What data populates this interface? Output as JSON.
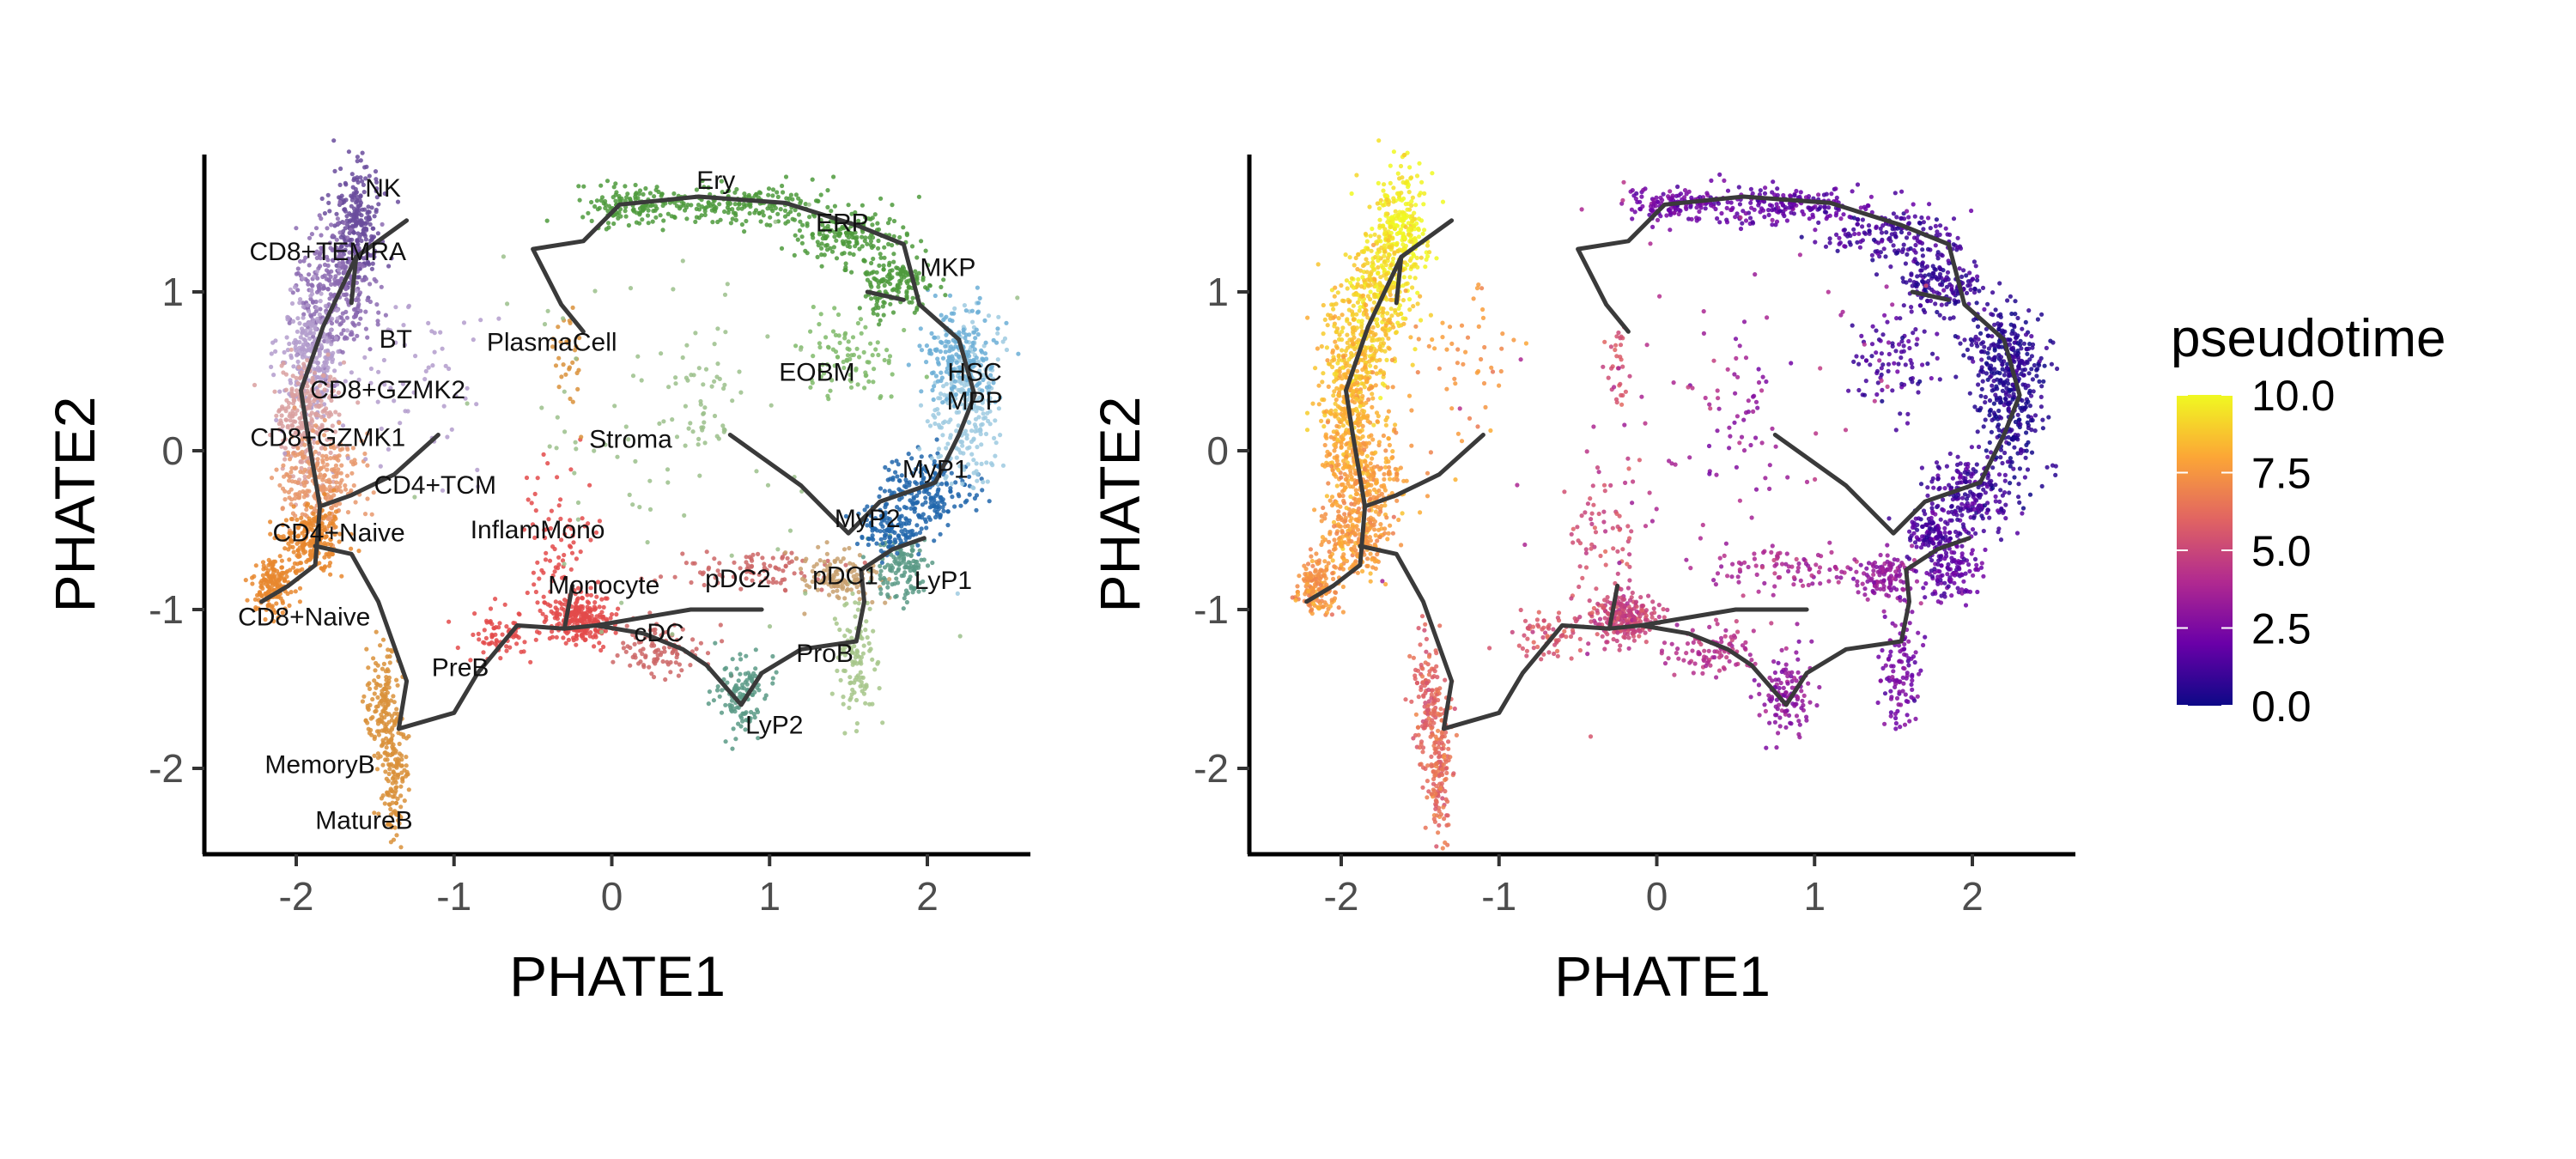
{
  "chart_data": [
    {
      "type": "scatter",
      "xlabel": "PHATE1",
      "ylabel": "PHATE2",
      "xlim": [
        -2.6,
        2.65
      ],
      "ylim": [
        -2.58,
        1.85
      ],
      "xticks": [
        -2,
        -1,
        0,
        1,
        2
      ],
      "yticks": [
        -2,
        -1,
        0,
        1
      ],
      "xtick_labels": [
        "-2",
        "-1",
        "0",
        "1",
        "2"
      ],
      "ytick_labels": [
        "-2",
        "-1",
        "0",
        "1"
      ],
      "grid": false,
      "color_by": "cell type",
      "cell_labels": [
        {
          "text": "NK",
          "x": -1.45,
          "y": 1.6
        },
        {
          "text": "CD8+TEMRA",
          "x": -1.8,
          "y": 1.2
        },
        {
          "text": "BT",
          "x": -1.37,
          "y": 0.65
        },
        {
          "text": "PlasmaCell",
          "x": -0.38,
          "y": 0.63
        },
        {
          "text": "CD8+GZMK2",
          "x": -1.42,
          "y": 0.33
        },
        {
          "text": "CD8+GZMK1",
          "x": -1.8,
          "y": 0.03
        },
        {
          "text": "CD4+TCM",
          "x": -1.12,
          "y": -0.27
        },
        {
          "text": "CD4+Naive",
          "x": -1.73,
          "y": -0.57
        },
        {
          "text": "CD8+Naive",
          "x": -1.95,
          "y": -1.1
        },
        {
          "text": "InflamMono",
          "x": -0.47,
          "y": -0.55
        },
        {
          "text": "Monocyte",
          "x": -0.05,
          "y": -0.9
        },
        {
          "text": "cDC",
          "x": 0.3,
          "y": -1.2
        },
        {
          "text": "pDC2",
          "x": 0.8,
          "y": -0.86
        },
        {
          "text": "pDC1",
          "x": 1.48,
          "y": -0.84
        },
        {
          "text": "PreB",
          "x": -0.96,
          "y": -1.42
        },
        {
          "text": "MemoryB",
          "x": -1.85,
          "y": -2.03
        },
        {
          "text": "MatureB",
          "x": -1.57,
          "y": -2.38
        },
        {
          "text": "Ery",
          "x": 0.66,
          "y": 1.65
        },
        {
          "text": "ERP",
          "x": 1.46,
          "y": 1.38
        },
        {
          "text": "MKP",
          "x": 2.13,
          "y": 1.1
        },
        {
          "text": "EOBM",
          "x": 1.3,
          "y": 0.44
        },
        {
          "text": "HSC",
          "x": 2.3,
          "y": 0.44
        },
        {
          "text": "MPP",
          "x": 2.3,
          "y": 0.26
        },
        {
          "text": "Stroma",
          "x": 0.12,
          "y": 0.02
        },
        {
          "text": "MyP1",
          "x": 2.05,
          "y": -0.17
        },
        {
          "text": "MyP2",
          "x": 1.62,
          "y": -0.48
        },
        {
          "text": "LyP1",
          "x": 2.1,
          "y": -0.87
        },
        {
          "text": "ProB",
          "x": 1.35,
          "y": -1.33
        },
        {
          "text": "LyP2",
          "x": 1.03,
          "y": -1.78
        }
      ],
      "trajectory": [
        [
          [
            -1.3,
            1.45
          ],
          [
            -1.62,
            1.22
          ],
          [
            -1.65,
            0.93
          ]
        ],
        [
          [
            -1.62,
            1.22
          ],
          [
            -1.83,
            0.78
          ],
          [
            -1.97,
            0.38
          ],
          [
            -1.93,
            0.12
          ],
          [
            -1.85,
            -0.35
          ],
          [
            -1.88,
            -0.72
          ],
          [
            -2.05,
            -0.85
          ],
          [
            -2.22,
            -0.95
          ]
        ],
        [
          [
            -1.85,
            -0.35
          ],
          [
            -1.65,
            -0.28
          ],
          [
            -1.38,
            -0.15
          ],
          [
            -1.1,
            0.1
          ]
        ],
        [
          [
            -1.88,
            -0.6
          ],
          [
            -1.65,
            -0.65
          ],
          [
            -1.48,
            -0.95
          ],
          [
            -1.3,
            -1.45
          ],
          [
            -1.35,
            -1.75
          ]
        ],
        [
          [
            -1.35,
            -1.75
          ],
          [
            -1.0,
            -1.65
          ],
          [
            -0.85,
            -1.4
          ],
          [
            -0.6,
            -1.1
          ],
          [
            -0.3,
            -1.12
          ],
          [
            -0.1,
            -1.1
          ],
          [
            0.2,
            -1.15
          ],
          [
            0.45,
            -1.25
          ],
          [
            0.6,
            -1.35
          ],
          [
            0.82,
            -1.6
          ],
          [
            0.95,
            -1.4
          ],
          [
            1.2,
            -1.25
          ],
          [
            1.55,
            -1.2
          ],
          [
            1.6,
            -0.95
          ],
          [
            1.58,
            -0.75
          ],
          [
            1.78,
            -0.62
          ],
          [
            1.98,
            -0.55
          ]
        ],
        [
          [
            -0.3,
            -1.12
          ],
          [
            -0.25,
            -0.85
          ]
        ],
        [
          [
            -0.1,
            -1.1
          ],
          [
            0.5,
            -1.0
          ],
          [
            0.95,
            -1.0
          ]
        ],
        [
          [
            0.75,
            0.1
          ],
          [
            1.2,
            -0.22
          ],
          [
            1.5,
            -0.52
          ],
          [
            1.7,
            -0.32
          ],
          [
            2.05,
            -0.2
          ],
          [
            2.2,
            0.1
          ],
          [
            2.3,
            0.35
          ],
          [
            2.2,
            0.7
          ],
          [
            1.95,
            0.92
          ],
          [
            1.85,
            1.3
          ],
          [
            1.55,
            1.42
          ],
          [
            1.1,
            1.56
          ],
          [
            0.55,
            1.6
          ],
          [
            0.05,
            1.55
          ],
          [
            -0.18,
            1.32
          ],
          [
            -0.5,
            1.27
          ],
          [
            -0.32,
            0.92
          ],
          [
            -0.18,
            0.75
          ]
        ],
        [
          [
            1.62,
            1.0
          ],
          [
            1.85,
            0.95
          ]
        ]
      ]
    },
    {
      "type": "scatter",
      "xlabel": "PHATE1",
      "ylabel": "PHATE2",
      "xlim": [
        -2.6,
        2.65
      ],
      "ylim": [
        -2.58,
        1.85
      ],
      "xticks": [
        -2,
        -1,
        0,
        1,
        2
      ],
      "yticks": [
        -2,
        -1,
        0,
        1
      ],
      "xtick_labels": [
        "-2",
        "-1",
        "0",
        "1",
        "2"
      ],
      "ytick_labels": [
        "-2",
        "-1",
        "0",
        "1"
      ],
      "grid": false,
      "color_by": "pseudotime",
      "colorbar": {
        "title": "pseudotime",
        "range": [
          0.0,
          10.0
        ],
        "ticks": [
          0.0,
          2.5,
          5.0,
          7.5,
          10.0
        ],
        "tick_labels": [
          "0.0",
          "2.5",
          "5.0",
          "7.5",
          "10.0"
        ],
        "colors": [
          "#0d0887",
          "#6a00a8",
          "#b12a90",
          "#e16462",
          "#fca636",
          "#f0f921"
        ]
      }
    }
  ],
  "colors": {
    "NK": "#6a4c9c",
    "CD8+TEMRA": "#8c6bb1",
    "T": "#b39ccc",
    "CD8+GZMK": "#d9a0a0",
    "CD4": "#e8986c",
    "CD8+Naive": "#e8872e",
    "B": "#d9903a",
    "Mono": "#e34a4a",
    "DC": "#cc6666",
    "pDC": "#c8a06e",
    "Ery": "#4d9a3c",
    "EOBM": "#7fba6a",
    "HSC": "#9ecae1",
    "MPP": "#6baed6",
    "MyP": "#2166ac",
    "LyP": "#5a9a86",
    "ProB": "#a6c58a",
    "Stroma": "#9bbf8b",
    "trajectory": "#3a3a3a"
  }
}
